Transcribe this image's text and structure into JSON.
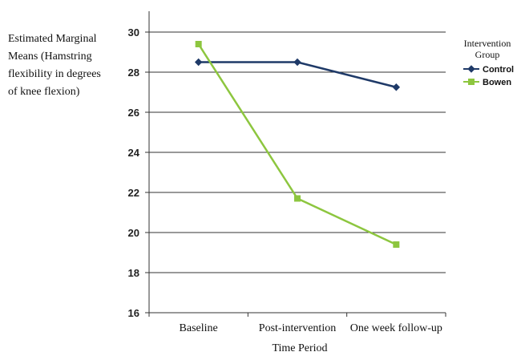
{
  "chart_data": {
    "type": "line",
    "categories": [
      "Baseline",
      "Post-intervention",
      "One week follow-up"
    ],
    "series": [
      {
        "name": "Control",
        "values": [
          28.5,
          28.5,
          27.25
        ],
        "color": "#1f3a68",
        "marker": "diamond"
      },
      {
        "name": "Bowen",
        "values": [
          29.4,
          21.7,
          19.4
        ],
        "color": "#8dc63f",
        "marker": "square"
      }
    ],
    "ylabel_lines": [
      "Estimated Marginal",
      "Means (Hamstring",
      "flexibility in degrees",
      "of knee flexion)"
    ],
    "xlabel": "Time Period",
    "ylim": [
      16,
      30
    ],
    "yticks": [
      16,
      18,
      20,
      22,
      24,
      26,
      28,
      30
    ],
    "grid": true,
    "legend": {
      "title_lines": [
        "Intervention",
        "Group"
      ],
      "placement": "right"
    }
  }
}
